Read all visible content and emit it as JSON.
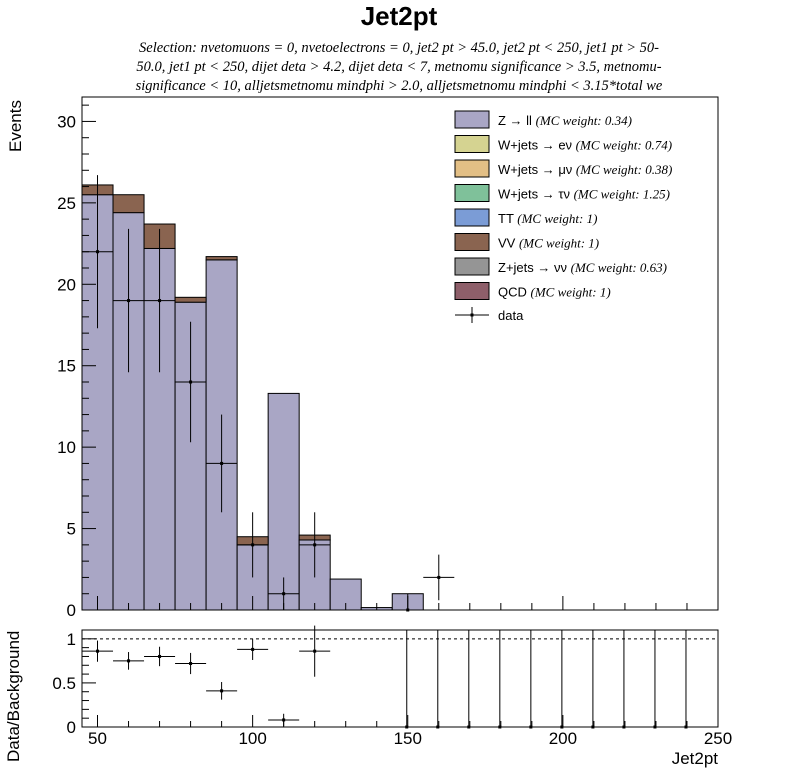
{
  "chart_data": [
    {
      "type": "bar",
      "stacked": true,
      "title": "Jet2pt",
      "subtitle_lines": [
        "Selection: nvetomuons = 0, nvetoelectrons = 0, jet2 pt > 45.0, jet2 pt < 250, jet1 pt > 50-",
        "50.0, jet1 pt < 250, dijet deta > 4.2, dijet deta < 7, metnomu significance > 3.5, metnomu-",
        "significance < 10, alljetsmetnomu mindphi > 2.0, alljetsmetnomu mindphi < 3.15*total we"
      ],
      "xlabel": "Jet2pt",
      "ylabel": "Events",
      "xlim": [
        45,
        250
      ],
      "ylim": [
        0,
        31.5
      ],
      "xticks": [
        50,
        100,
        150,
        200,
        250
      ],
      "yticks": [
        0,
        5,
        10,
        15,
        20,
        25,
        30
      ],
      "legend_position": "top-right",
      "bin_edges": [
        45,
        55,
        65,
        75,
        85,
        95,
        105,
        115,
        125,
        135,
        145,
        155,
        165,
        175,
        185,
        195,
        205,
        215,
        225,
        235,
        245,
        250
      ],
      "series": [
        {
          "label": "Z → ll",
          "weight": "(MC weight: 0.34)",
          "color": "#a9a6c5",
          "values": [
            25.5,
            24.4,
            22.2,
            18.9,
            21.5,
            4.0,
            13.3,
            4.3,
            1.9,
            0.15,
            1.0,
            0,
            0,
            0,
            0,
            0,
            0,
            0,
            0,
            0,
            0
          ]
        },
        {
          "label": "W+jets → eν",
          "weight": "(MC weight: 0.74)",
          "color": "#d5d391",
          "values": [
            0,
            0,
            0,
            0,
            0,
            0,
            0,
            0,
            0,
            0,
            0,
            0,
            0,
            0,
            0,
            0,
            0,
            0,
            0,
            0,
            0
          ]
        },
        {
          "label": "W+jets → μν",
          "weight": "(MC weight: 0.38)",
          "color": "#e3bf85",
          "values": [
            0,
            0,
            0,
            0,
            0,
            0,
            0,
            0,
            0,
            0,
            0,
            0,
            0,
            0,
            0,
            0,
            0,
            0,
            0,
            0,
            0
          ]
        },
        {
          "label": "W+jets → τν",
          "weight": "(MC weight: 1.25)",
          "color": "#7fc19a",
          "values": [
            0,
            0,
            0,
            0,
            0,
            0,
            0,
            0,
            0,
            0,
            0,
            0,
            0,
            0,
            0,
            0,
            0,
            0,
            0,
            0,
            0
          ]
        },
        {
          "label": "TT",
          "weight": "(MC weight: 1)",
          "color": "#7b9cd6",
          "values": [
            0,
            0,
            0,
            0,
            0,
            0,
            0,
            0,
            0,
            0,
            0,
            0,
            0,
            0,
            0,
            0,
            0,
            0,
            0,
            0,
            0
          ]
        },
        {
          "label": "VV",
          "weight": "(MC weight: 1)",
          "color": "#8a6450",
          "values": [
            0.6,
            1.1,
            1.5,
            0.3,
            0.2,
            0.5,
            0,
            0.3,
            0,
            0,
            0,
            0,
            0,
            0,
            0,
            0,
            0,
            0,
            0,
            0,
            0
          ]
        },
        {
          "label": "Z+jets → νν",
          "weight": "(MC weight: 0.63)",
          "color": "#959595",
          "values": [
            0,
            0,
            0,
            0,
            0,
            0,
            0,
            0,
            0,
            0,
            0,
            0,
            0,
            0,
            0,
            0,
            0,
            0,
            0,
            0,
            0
          ]
        },
        {
          "label": "QCD",
          "weight": "(MC weight: 1)",
          "color": "#8e5f6a",
          "values": [
            0,
            0,
            0,
            0,
            0,
            0,
            0,
            0,
            0,
            0,
            0,
            0,
            0,
            0,
            0,
            0,
            0,
            0,
            0,
            0,
            0
          ]
        }
      ],
      "data_label": "data",
      "data_points": [
        {
          "x": 50,
          "y": 22,
          "err": 4.7
        },
        {
          "x": 60,
          "y": 19,
          "err": 4.4
        },
        {
          "x": 70,
          "y": 19,
          "err": 4.4
        },
        {
          "x": 80,
          "y": 14,
          "err": 3.7
        },
        {
          "x": 90,
          "y": 9,
          "err": 3.0
        },
        {
          "x": 100,
          "y": 4,
          "err": 2.0
        },
        {
          "x": 110,
          "y": 1,
          "err": 1.0
        },
        {
          "x": 120,
          "y": 4,
          "err": 2.0
        },
        {
          "x": 150,
          "y": 0,
          "err": 1.0
        },
        {
          "x": 160,
          "y": 2,
          "err": 1.4
        }
      ]
    },
    {
      "type": "scatter",
      "xlabel": "Jet2pt",
      "ylabel": "Data/Background",
      "xlim": [
        45,
        250
      ],
      "ylim": [
        0,
        1.1
      ],
      "xticks": [
        50,
        100,
        150,
        200,
        250
      ],
      "yticks": [
        0,
        0.5,
        1
      ],
      "reference_line": 1,
      "points": [
        {
          "x": 50,
          "y": 0.86,
          "err": 0.12
        },
        {
          "x": 60,
          "y": 0.75,
          "err": 0.1
        },
        {
          "x": 70,
          "y": 0.8,
          "err": 0.11
        },
        {
          "x": 80,
          "y": 0.72,
          "err": 0.12
        },
        {
          "x": 90,
          "y": 0.41,
          "err": 0.1
        },
        {
          "x": 100,
          "y": 0.88,
          "err": 0.12
        },
        {
          "x": 110,
          "y": 0.08,
          "err": 0.07
        },
        {
          "x": 120,
          "y": 0.86,
          "err": 0.29
        }
      ],
      "empty_bins_x": [
        150,
        160,
        170,
        180,
        190,
        200,
        210,
        220,
        230,
        240
      ]
    }
  ]
}
